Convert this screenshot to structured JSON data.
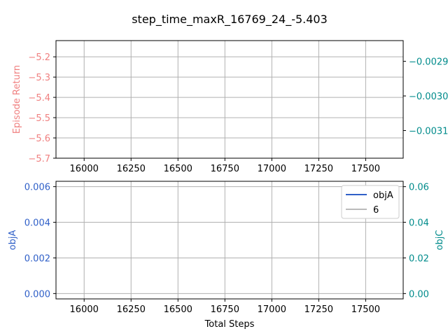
{
  "chart_data": {
    "title": "step_time_maxR_16769_24_-5.403",
    "colors": {
      "left_top": "#f08080",
      "right": "#008b8b",
      "left_bottom": "#3060c8",
      "grid": "#b0b0b0",
      "legend_objA": "#3060c8",
      "legend_6": "#bbbbbb"
    },
    "x": {
      "label": "Total Steps",
      "range": [
        15850,
        17700
      ],
      "ticks": [
        16000,
        16250,
        16500,
        16750,
        17000,
        17250,
        17500
      ],
      "tick_labels": [
        "16000",
        "16250",
        "16500",
        "16750",
        "17000",
        "17250",
        "17500"
      ]
    },
    "charts": [
      {
        "type": "line",
        "series": [],
        "ylabel_left": "Episode Return",
        "left_range": [
          -5.7,
          -5.12
        ],
        "left_ticks": [
          -5.2,
          -5.3,
          -5.4,
          -5.5,
          -5.6,
          -5.7
        ],
        "left_tick_labels": [
          "−5.2",
          "−5.3",
          "−5.4",
          "−5.5",
          "−5.6",
          "−5.7"
        ],
        "right_range": [
          -0.00318,
          -0.00284
        ],
        "right_ticks": [
          -0.0029,
          -0.003,
          -0.0031
        ],
        "right_tick_labels": [
          "−0.0029",
          "−0.0030",
          "−0.0031"
        ],
        "show_x_labels": true
      },
      {
        "type": "line",
        "series": [],
        "ylabel_left": "objA",
        "ylabel_right": "objC",
        "left_range": [
          -0.0003,
          0.0063
        ],
        "left_ticks": [
          0.0,
          0.002,
          0.004,
          0.006
        ],
        "left_tick_labels": [
          "0.000",
          "0.002",
          "0.004",
          "0.006"
        ],
        "right_range": [
          -0.003,
          0.063
        ],
        "right_ticks": [
          0.0,
          0.02,
          0.04,
          0.06
        ],
        "right_tick_labels": [
          "0.00",
          "0.02",
          "0.04",
          "0.06"
        ],
        "legend": [
          "objA",
          "6"
        ],
        "legend_position": "top-right"
      }
    ]
  }
}
